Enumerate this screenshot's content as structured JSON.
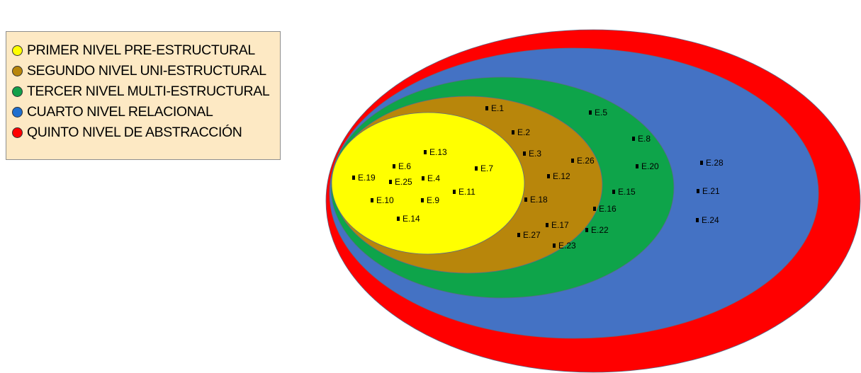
{
  "legend": {
    "items": [
      {
        "key": "primer",
        "label": "PRIMER NIVEL PRE-ESTRUCTURAL",
        "color": "#ffff00"
      },
      {
        "key": "segundo",
        "label": "SEGUNDO NIVEL UNI-ESTRUCTURAL",
        "color": "#b8860b"
      },
      {
        "key": "tercer",
        "label": "TERCER NIVEL MULTI-ESTRUCTURAL",
        "color": "#12a04a"
      },
      {
        "key": "cuarto",
        "label": "CUARTO NIVEL RELACIONAL",
        "color": "#1f6fcf"
      },
      {
        "key": "quinto",
        "label": "QUINTO NIVEL DE ABSTRACCIÓN",
        "color": "#ff0000"
      }
    ]
  },
  "levels": [
    {
      "key": "quinto",
      "fill": "#ff0000"
    },
    {
      "key": "cuarto",
      "fill": "#4472c4"
    },
    {
      "key": "tercer",
      "fill": "#0ea44a"
    },
    {
      "key": "segundo",
      "fill": "#b8860b"
    },
    {
      "key": "primer",
      "fill": "#ffff00"
    }
  ],
  "points": [
    {
      "label": "E.1",
      "level": "segundo"
    },
    {
      "label": "E.2",
      "level": "segundo"
    },
    {
      "label": "E.3",
      "level": "segundo"
    },
    {
      "label": "E.4",
      "level": "primer"
    },
    {
      "label": "E.5",
      "level": "tercer"
    },
    {
      "label": "E.6",
      "level": "primer"
    },
    {
      "label": "E.7",
      "level": "primer"
    },
    {
      "label": "E.8",
      "level": "tercer"
    },
    {
      "label": "E.9",
      "level": "primer"
    },
    {
      "label": "E.10",
      "level": "primer"
    },
    {
      "label": "E.11",
      "level": "primer"
    },
    {
      "label": "E.12",
      "level": "segundo"
    },
    {
      "label": "E.13",
      "level": "primer"
    },
    {
      "label": "E.14",
      "level": "primer"
    },
    {
      "label": "E.15",
      "level": "tercer"
    },
    {
      "label": "E.16",
      "level": "tercer"
    },
    {
      "label": "E.17",
      "level": "segundo"
    },
    {
      "label": "E.18",
      "level": "segundo"
    },
    {
      "label": "E.19",
      "level": "primer"
    },
    {
      "label": "E.20",
      "level": "tercer"
    },
    {
      "label": "E.21",
      "level": "cuarto"
    },
    {
      "label": "E.22",
      "level": "tercer"
    },
    {
      "label": "E.23",
      "level": "segundo"
    },
    {
      "label": "E.24",
      "level": "cuarto"
    },
    {
      "label": "E.25",
      "level": "primer"
    },
    {
      "label": "E.26",
      "level": "segundo"
    },
    {
      "label": "E.27",
      "level": "segundo"
    },
    {
      "label": "E.28",
      "level": "cuarto"
    }
  ]
}
